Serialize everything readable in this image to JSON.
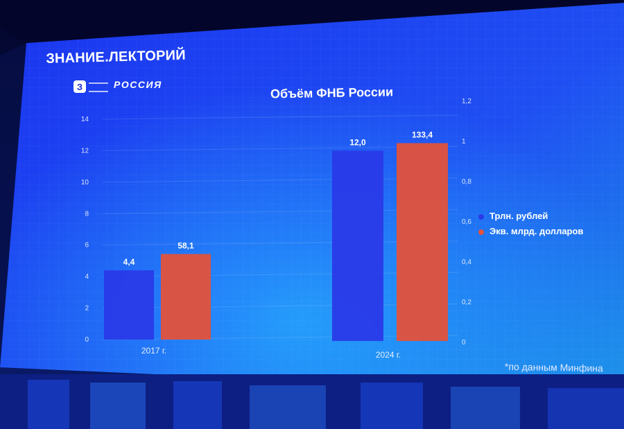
{
  "header": {
    "brand": "ЗНАНИЕ.ЛЕКТОРИЙ",
    "logo_z": "З",
    "logo_russia": "РОССИЯ"
  },
  "chart_data": {
    "type": "bar",
    "title": "Объём ФНБ России",
    "categories": [
      "2017 г.",
      "2024 г."
    ],
    "series": [
      {
        "name": "Трлн. рублей",
        "values": [
          4.4,
          12.0
        ],
        "labels": [
          "4,4",
          "12,0"
        ],
        "color": "#2a3ae8",
        "axis": "left"
      },
      {
        "name": "Экв. млрд. долларов",
        "values": [
          58.1,
          133.4
        ],
        "labels": [
          "58,1",
          "133,4"
        ],
        "color": "#e3523b",
        "axis": "right"
      }
    ],
    "y_left": {
      "ticks": [
        "0",
        "2",
        "4",
        "6",
        "8",
        "10",
        "12",
        "14"
      ]
    },
    "y_right": {
      "ticks": [
        "0",
        "0,2",
        "0,4",
        "0,6",
        "0,8",
        "1",
        "1,2"
      ]
    },
    "legend_position": "right"
  },
  "footnote": "*по данным Минфина"
}
